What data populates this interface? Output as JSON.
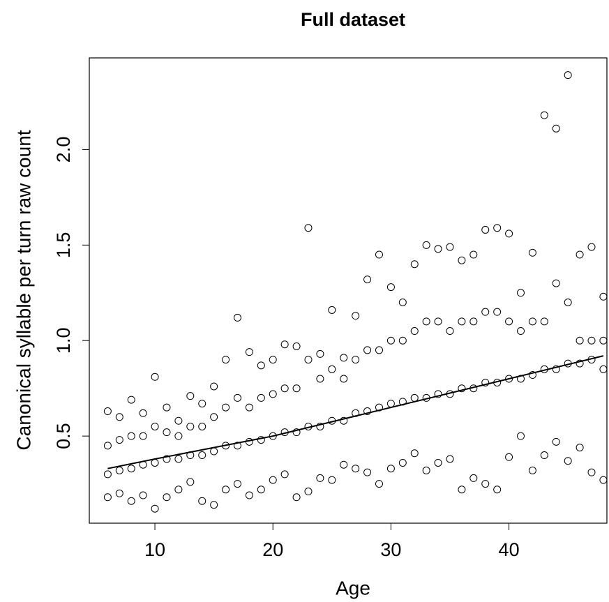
{
  "chart_data": {
    "type": "scatter",
    "title": "Full dataset",
    "x_label": "Age",
    "y_label": "Canonical syllable per turn raw count",
    "xlim": [
      4.44,
      48.3
    ],
    "ylim": [
      0.044,
      2.48
    ],
    "xticks": [
      10,
      20,
      30,
      40
    ],
    "yticks": [
      0.5,
      {
        "value": 1.0,
        "label": "1.0"
      },
      1.5,
      {
        "value": 2.0,
        "label": "2.0"
      }
    ],
    "color": "#000000",
    "points": [
      {
        "x": 6,
        "y": [
          0.18,
          0.3,
          0.45,
          0.63
        ]
      },
      {
        "x": 7,
        "y": [
          0.2,
          0.32,
          0.48,
          0.6
        ]
      },
      {
        "x": 8,
        "y": [
          0.16,
          0.33,
          0.5,
          0.69
        ]
      },
      {
        "x": 9,
        "y": [
          0.19,
          0.35,
          0.5,
          0.62
        ]
      },
      {
        "x": 10,
        "y": [
          0.12,
          0.36,
          0.55,
          0.81
        ]
      },
      {
        "x": 11,
        "y": [
          0.18,
          0.38,
          0.52,
          0.65
        ]
      },
      {
        "x": 12,
        "y": [
          0.22,
          0.38,
          0.5,
          0.58
        ]
      },
      {
        "x": 13,
        "y": [
          0.26,
          0.4,
          0.55,
          0.71
        ]
      },
      {
        "x": 14,
        "y": [
          0.16,
          0.4,
          0.55,
          0.67
        ]
      },
      {
        "x": 15,
        "y": [
          0.14,
          0.42,
          0.6,
          0.76
        ]
      },
      {
        "x": 16,
        "y": [
          0.22,
          0.45,
          0.65,
          0.9
        ]
      },
      {
        "x": 17,
        "y": [
          0.25,
          0.45,
          0.7,
          1.12
        ]
      },
      {
        "x": 18,
        "y": [
          0.19,
          0.47,
          0.65,
          0.94
        ]
      },
      {
        "x": 19,
        "y": [
          0.22,
          0.48,
          0.7,
          0.87
        ]
      },
      {
        "x": 20,
        "y": [
          0.27,
          0.5,
          0.72,
          0.9
        ]
      },
      {
        "x": 21,
        "y": [
          0.3,
          0.52,
          0.75,
          0.98
        ]
      },
      {
        "x": 22,
        "y": [
          0.18,
          0.52,
          0.75,
          0.97
        ]
      },
      {
        "x": 23,
        "y": [
          0.21,
          0.55,
          0.9,
          1.59
        ]
      },
      {
        "x": 24,
        "y": [
          0.28,
          0.55,
          0.8,
          0.93
        ]
      },
      {
        "x": 25,
        "y": [
          0.27,
          0.58,
          0.85,
          1.16
        ]
      },
      {
        "x": 26,
        "y": [
          0.35,
          0.58,
          0.8,
          0.91
        ]
      },
      {
        "x": 27,
        "y": [
          0.33,
          0.62,
          0.9,
          1.13
        ]
      },
      {
        "x": 28,
        "y": [
          0.31,
          0.63,
          0.95,
          1.32
        ]
      },
      {
        "x": 29,
        "y": [
          0.25,
          0.65,
          0.95,
          1.45
        ]
      },
      {
        "x": 30,
        "y": [
          0.33,
          0.67,
          1.0,
          1.28
        ]
      },
      {
        "x": 31,
        "y": [
          0.36,
          0.68,
          1.0,
          1.2
        ]
      },
      {
        "x": 32,
        "y": [
          0.41,
          0.7,
          1.05,
          1.4
        ]
      },
      {
        "x": 33,
        "y": [
          0.32,
          0.7,
          1.1,
          1.5
        ]
      },
      {
        "x": 34,
        "y": [
          0.36,
          0.72,
          1.1,
          1.48
        ]
      },
      {
        "x": 35,
        "y": [
          0.38,
          0.72,
          1.05,
          1.49
        ]
      },
      {
        "x": 36,
        "y": [
          0.22,
          0.75,
          1.1,
          1.42
        ]
      },
      {
        "x": 37,
        "y": [
          0.28,
          0.75,
          1.1,
          1.45
        ]
      },
      {
        "x": 38,
        "y": [
          0.25,
          0.78,
          1.15,
          1.58
        ]
      },
      {
        "x": 39,
        "y": [
          0.22,
          0.78,
          1.15,
          1.59
        ]
      },
      {
        "x": 40,
        "y": [
          0.39,
          0.8,
          1.1,
          1.56
        ]
      },
      {
        "x": 41,
        "y": [
          0.5,
          0.8,
          1.05,
          1.25
        ]
      },
      {
        "x": 42,
        "y": [
          0.32,
          0.82,
          1.1,
          1.46
        ]
      },
      {
        "x": 43,
        "y": [
          0.4,
          0.85,
          1.1,
          2.18
        ]
      },
      {
        "x": 44,
        "y": [
          0.47,
          0.85,
          1.3,
          2.11
        ]
      },
      {
        "x": 45,
        "y": [
          0.37,
          0.88,
          1.2,
          2.39
        ]
      },
      {
        "x": 46,
        "y": [
          0.44,
          0.88,
          1.0,
          1.45
        ]
      },
      {
        "x": 47,
        "y": [
          0.31,
          0.9,
          1.0,
          1.49
        ]
      },
      {
        "x": 48,
        "y": [
          0.27,
          0.85,
          1.0,
          1.23
        ]
      }
    ],
    "trend": {
      "x": [
        6,
        10,
        20,
        30,
        40,
        48
      ],
      "y": [
        0.33,
        0.38,
        0.5,
        0.65,
        0.8,
        0.92
      ]
    }
  }
}
